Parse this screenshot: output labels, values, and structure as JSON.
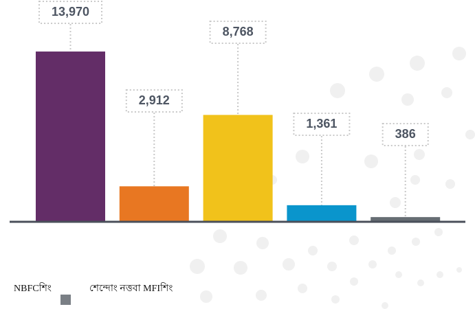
{
  "chart_data": {
    "type": "bar",
    "categories": [
      null,
      null,
      null,
      null,
      null
    ],
    "values": [
      13970,
      2912,
      8768,
      1361,
      386
    ],
    "value_labels": [
      "13,970",
      "2,912",
      "8,768",
      "1,361",
      "386"
    ],
    "colors": [
      "#632d67",
      "#e87722",
      "#f1c21b",
      "#0a95cc",
      "#666d73"
    ],
    "ylim": [
      0,
      14000
    ],
    "legend": [
      {
        "label": "NBFCশিং"
      },
      {
        "label": "শেন্দোং নত্তবা MFIশিং",
        "color": "#7a7f85"
      }
    ]
  }
}
